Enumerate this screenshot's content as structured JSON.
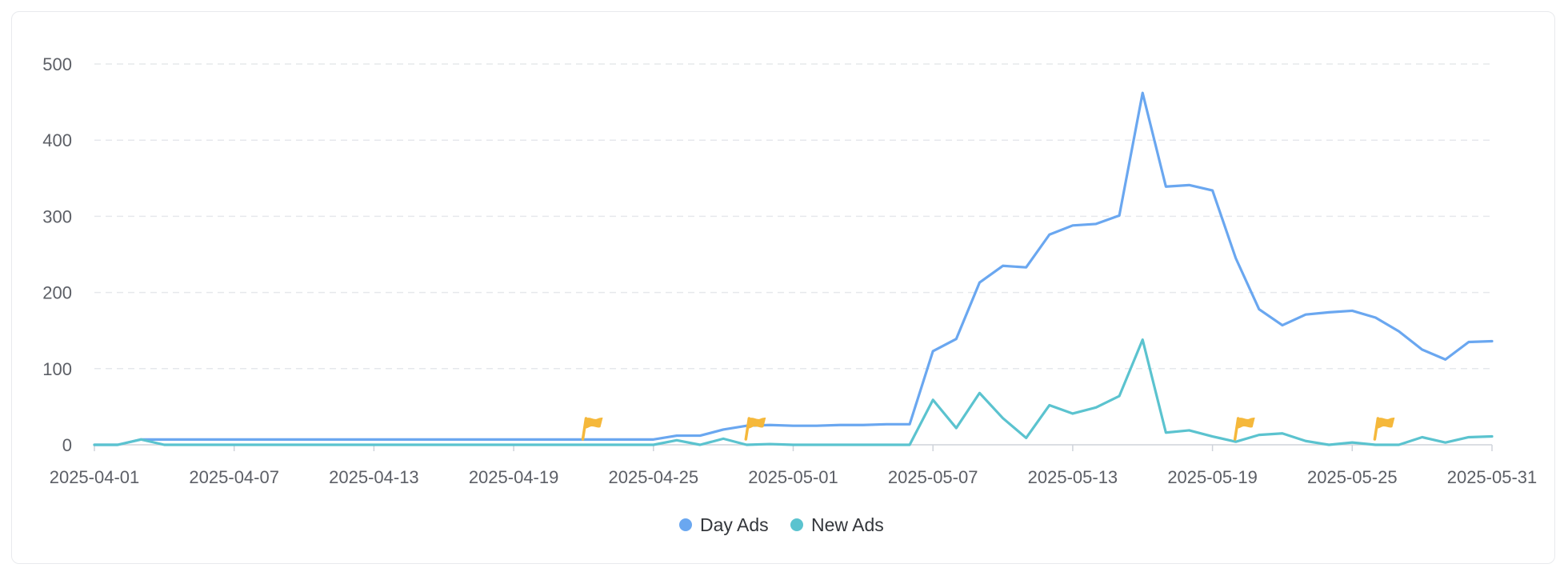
{
  "chart_data": {
    "type": "line",
    "title": "",
    "xlabel": "",
    "ylabel": "",
    "ylim": [
      0,
      500
    ],
    "y_ticks": [
      "0",
      "100",
      "200",
      "300",
      "400",
      "500"
    ],
    "x_tick_labels": [
      "2025-04-01",
      "2025-04-07",
      "2025-04-13",
      "2025-04-19",
      "2025-04-25",
      "2025-05-01",
      "2025-05-07",
      "2025-05-13",
      "2025-05-19",
      "2025-05-25",
      "2025-05-31"
    ],
    "grid": "horizontal dashed",
    "legend_position": "bottom-center",
    "x": [
      "2025-04-01",
      "2025-04-02",
      "2025-04-03",
      "2025-04-04",
      "2025-04-05",
      "2025-04-06",
      "2025-04-07",
      "2025-04-08",
      "2025-04-09",
      "2025-04-10",
      "2025-04-11",
      "2025-04-12",
      "2025-04-13",
      "2025-04-14",
      "2025-04-15",
      "2025-04-16",
      "2025-04-17",
      "2025-04-18",
      "2025-04-19",
      "2025-04-20",
      "2025-04-21",
      "2025-04-22",
      "2025-04-23",
      "2025-04-24",
      "2025-04-25",
      "2025-04-26",
      "2025-04-27",
      "2025-04-28",
      "2025-04-29",
      "2025-04-30",
      "2025-05-01",
      "2025-05-02",
      "2025-05-03",
      "2025-05-04",
      "2025-05-05",
      "2025-05-06",
      "2025-05-07",
      "2025-05-08",
      "2025-05-09",
      "2025-05-10",
      "2025-05-11",
      "2025-05-12",
      "2025-05-13",
      "2025-05-14",
      "2025-05-15",
      "2025-05-16",
      "2025-05-17",
      "2025-05-18",
      "2025-05-19",
      "2025-05-20",
      "2025-05-21",
      "2025-05-22",
      "2025-05-23",
      "2025-05-24",
      "2025-05-25",
      "2025-05-26",
      "2025-05-27",
      "2025-05-28",
      "2025-05-29",
      "2025-05-30",
      "2025-05-31"
    ],
    "series": [
      {
        "name": "Day Ads",
        "color": "#6aa7f0",
        "values": [
          0,
          0,
          7,
          7,
          7,
          7,
          7,
          7,
          7,
          7,
          7,
          7,
          7,
          7,
          7,
          7,
          7,
          7,
          7,
          7,
          7,
          7,
          7,
          7,
          7,
          12,
          12,
          20,
          25,
          26,
          25,
          25,
          26,
          26,
          27,
          27,
          123,
          139,
          213,
          235,
          233,
          276,
          288,
          290,
          301,
          462,
          339,
          341,
          334,
          245,
          178,
          157,
          171,
          174,
          176,
          167,
          149,
          125,
          112,
          135,
          136
        ]
      },
      {
        "name": "New Ads",
        "color": "#5bc3cf",
        "values": [
          0,
          0,
          7,
          0,
          0,
          0,
          0,
          0,
          0,
          0,
          0,
          0,
          0,
          0,
          0,
          0,
          0,
          0,
          0,
          0,
          0,
          0,
          0,
          0,
          0,
          6,
          0,
          8,
          0,
          1,
          0,
          0,
          0,
          0,
          0,
          0,
          59,
          22,
          68,
          35,
          9,
          52,
          41,
          49,
          64,
          138,
          16,
          19,
          11,
          4,
          13,
          15,
          5,
          0,
          3,
          0,
          0,
          10,
          3,
          10,
          11
        ]
      }
    ],
    "annotations": [
      {
        "type": "flag",
        "date": "2025-04-22",
        "color": "#f5b83b"
      },
      {
        "type": "flag",
        "date": "2025-04-29",
        "color": "#f5b83b"
      },
      {
        "type": "flag",
        "date": "2025-05-20",
        "color": "#f5b83b"
      },
      {
        "type": "flag",
        "date": "2025-05-26",
        "color": "#f5b83b"
      }
    ]
  }
}
